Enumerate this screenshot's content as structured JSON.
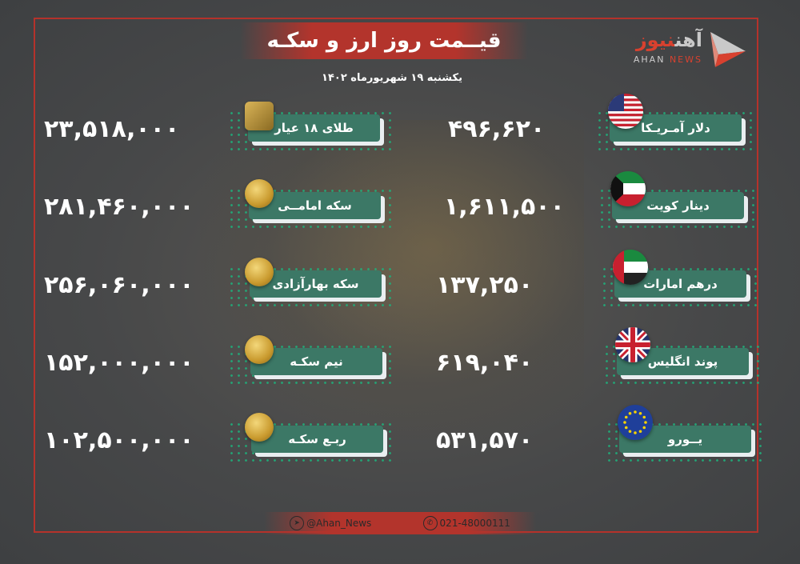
{
  "header": {
    "title": "قیــمت روز ارز و سکـه",
    "date": "یکشنبه ۱۹ شهریورماه ۱۴۰۲"
  },
  "logo": {
    "fa_gray": "آهن",
    "fa_red": "نیوز",
    "en_gray": "AHAN",
    "en_red": "NEWS"
  },
  "currencies": [
    {
      "label": "دلار آمـریـکا",
      "value": "۴۹۶,۶۲۰",
      "icon": "us-flag-icon"
    },
    {
      "label": "دینار کویت",
      "value": "۱,۶۱۱,۵۰۰",
      "icon": "kuwait-flag-icon"
    },
    {
      "label": "درهم امارات",
      "value": "۱۳۷,۲۵۰",
      "icon": "uae-flag-icon"
    },
    {
      "label": "پوند انگلیس",
      "value": "۶۱۹,۰۴۰",
      "icon": "uk-flag-icon"
    },
    {
      "label": "یــورو",
      "value": "۵۳۱,۵۷۰",
      "icon": "eu-flag-icon"
    }
  ],
  "coins": [
    {
      "label": "طلای ۱۸ عیار",
      "value": "۲۳,۵۱۸,۰۰۰",
      "icon": "gold-bar-icon"
    },
    {
      "label": "سکه امامــی",
      "value": "۲۸۱,۴۶۰,۰۰۰",
      "icon": "emami-coin-icon"
    },
    {
      "label": "سکه بهارآزادی",
      "value": "۲۵۶,۰۶۰,۰۰۰",
      "icon": "coin-icon"
    },
    {
      "label": "نیم سکـه",
      "value": "۱۵۲,۰۰۰,۰۰۰",
      "icon": "coin-icon"
    },
    {
      "label": "ربـع سکـه",
      "value": "۱۰۲,۵۰۰,۰۰۰",
      "icon": "coin-icon"
    }
  ],
  "footer": {
    "telegram": "@Ahan_News",
    "phone": "021-48000111"
  },
  "colors": {
    "frame": "#b5322b",
    "label_bg": "#3c7866",
    "dots": "#1fae7a",
    "background": "#474849"
  }
}
